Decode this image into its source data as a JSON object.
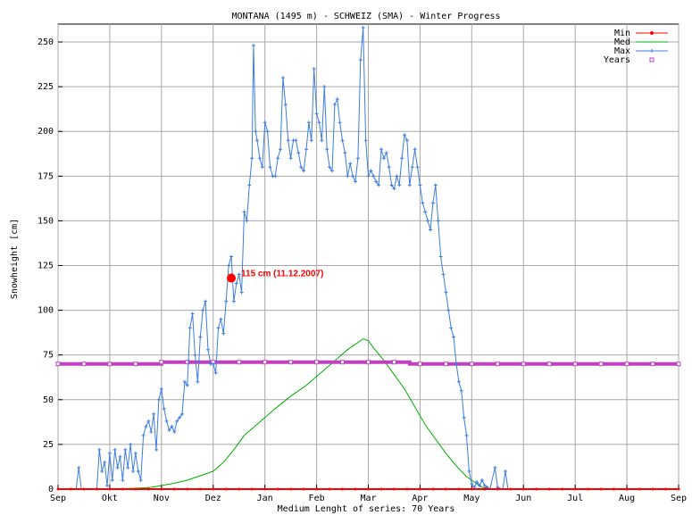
{
  "chart_data": {
    "type": "line",
    "title": "MONTANA (1495 m) - SCHWEIZ (SMA) - Winter Progress",
    "xlabel": "Medium Lenght of series: 70 Years",
    "ylabel": "Snowheight [cm]",
    "x_ticks": [
      "Sep",
      "Okt",
      "Nov",
      "Dez",
      "Jan",
      "Feb",
      "Mar",
      "Apr",
      "May",
      "Jun",
      "Jul",
      "Aug",
      "Sep"
    ],
    "y_ticks": [
      "0",
      "25",
      "50",
      "75",
      "100",
      "125",
      "150",
      "175",
      "200",
      "225",
      "250"
    ],
    "ylim": [
      0,
      260
    ],
    "x_unit": "months since 1 Sep",
    "xlim": [
      0,
      12
    ],
    "grid": true,
    "legend_position": "top-right",
    "series": [
      {
        "name": "Min",
        "color": "#ff0000",
        "points": [
          [
            0,
            0
          ],
          [
            12,
            0
          ]
        ]
      },
      {
        "name": "Med",
        "color": "#00b000",
        "points": [
          [
            0,
            0
          ],
          [
            1.0,
            0
          ],
          [
            1.5,
            0.5
          ],
          [
            1.8,
            1
          ],
          [
            2.0,
            2
          ],
          [
            2.2,
            3
          ],
          [
            2.5,
            5
          ],
          [
            2.8,
            8
          ],
          [
            3.0,
            10
          ],
          [
            3.2,
            15
          ],
          [
            3.4,
            22
          ],
          [
            3.6,
            30
          ],
          [
            3.8,
            35
          ],
          [
            4.0,
            40
          ],
          [
            4.2,
            45
          ],
          [
            4.5,
            52
          ],
          [
            4.8,
            58
          ],
          [
            5.0,
            63
          ],
          [
            5.2,
            68
          ],
          [
            5.4,
            73
          ],
          [
            5.6,
            78
          ],
          [
            5.8,
            82
          ],
          [
            5.9,
            84
          ],
          [
            6.0,
            83
          ],
          [
            6.1,
            79
          ],
          [
            6.3,
            72
          ],
          [
            6.5,
            64
          ],
          [
            6.7,
            56
          ],
          [
            6.9,
            46
          ],
          [
            7.1,
            36
          ],
          [
            7.3,
            28
          ],
          [
            7.5,
            20
          ],
          [
            7.7,
            13
          ],
          [
            7.9,
            7
          ],
          [
            8.1,
            3
          ],
          [
            8.2,
            1
          ],
          [
            8.4,
            0
          ],
          [
            12,
            0
          ]
        ]
      },
      {
        "name": "Max",
        "color": "#3c7ce0",
        "points": [
          [
            0,
            0
          ],
          [
            0.35,
            0
          ],
          [
            0.4,
            12
          ],
          [
            0.45,
            0
          ],
          [
            0.75,
            0
          ],
          [
            0.8,
            22
          ],
          [
            0.85,
            10
          ],
          [
            0.9,
            15
          ],
          [
            0.95,
            2
          ],
          [
            1.0,
            20
          ],
          [
            1.05,
            5
          ],
          [
            1.1,
            22
          ],
          [
            1.15,
            12
          ],
          [
            1.2,
            18
          ],
          [
            1.25,
            5
          ],
          [
            1.3,
            22
          ],
          [
            1.35,
            12
          ],
          [
            1.4,
            25
          ],
          [
            1.45,
            10
          ],
          [
            1.5,
            20
          ],
          [
            1.55,
            10
          ],
          [
            1.6,
            5
          ],
          [
            1.65,
            30
          ],
          [
            1.7,
            35
          ],
          [
            1.75,
            38
          ],
          [
            1.8,
            32
          ],
          [
            1.85,
            42
          ],
          [
            1.9,
            22
          ],
          [
            1.95,
            50
          ],
          [
            2.0,
            56
          ],
          [
            2.05,
            45
          ],
          [
            2.1,
            38
          ],
          [
            2.15,
            33
          ],
          [
            2.2,
            35
          ],
          [
            2.25,
            32
          ],
          [
            2.3,
            38
          ],
          [
            2.35,
            40
          ],
          [
            2.4,
            42
          ],
          [
            2.45,
            60
          ],
          [
            2.5,
            58
          ],
          [
            2.55,
            90
          ],
          [
            2.6,
            98
          ],
          [
            2.65,
            75
          ],
          [
            2.7,
            60
          ],
          [
            2.75,
            85
          ],
          [
            2.8,
            100
          ],
          [
            2.85,
            105
          ],
          [
            2.9,
            78
          ],
          [
            2.95,
            70
          ],
          [
            3.0,
            70
          ],
          [
            3.05,
            65
          ],
          [
            3.1,
            90
          ],
          [
            3.15,
            95
          ],
          [
            3.2,
            87
          ],
          [
            3.25,
            105
          ],
          [
            3.3,
            125
          ],
          [
            3.35,
            130
          ],
          [
            3.4,
            105
          ],
          [
            3.45,
            115
          ],
          [
            3.5,
            120
          ],
          [
            3.55,
            110
          ],
          [
            3.6,
            155
          ],
          [
            3.65,
            150
          ],
          [
            3.7,
            170
          ],
          [
            3.75,
            185
          ],
          [
            3.78,
            248
          ],
          [
            3.82,
            200
          ],
          [
            3.85,
            195
          ],
          [
            3.9,
            185
          ],
          [
            3.95,
            180
          ],
          [
            4.0,
            205
          ],
          [
            4.05,
            200
          ],
          [
            4.1,
            180
          ],
          [
            4.15,
            175
          ],
          [
            4.2,
            175
          ],
          [
            4.25,
            185
          ],
          [
            4.3,
            190
          ],
          [
            4.35,
            230
          ],
          [
            4.4,
            215
          ],
          [
            4.45,
            195
          ],
          [
            4.5,
            185
          ],
          [
            4.55,
            195
          ],
          [
            4.6,
            195
          ],
          [
            4.65,
            188
          ],
          [
            4.7,
            180
          ],
          [
            4.75,
            178
          ],
          [
            4.8,
            190
          ],
          [
            4.85,
            205
          ],
          [
            4.9,
            195
          ],
          [
            4.95,
            235
          ],
          [
            5.0,
            210
          ],
          [
            5.05,
            205
          ],
          [
            5.1,
            195
          ],
          [
            5.15,
            225
          ],
          [
            5.2,
            190
          ],
          [
            5.25,
            180
          ],
          [
            5.3,
            178
          ],
          [
            5.35,
            215
          ],
          [
            5.4,
            218
          ],
          [
            5.45,
            205
          ],
          [
            5.5,
            195
          ],
          [
            5.55,
            188
          ],
          [
            5.6,
            175
          ],
          [
            5.65,
            182
          ],
          [
            5.7,
            175
          ],
          [
            5.75,
            172
          ],
          [
            5.8,
            185
          ],
          [
            5.85,
            240
          ],
          [
            5.9,
            258
          ],
          [
            5.95,
            195
          ],
          [
            6.0,
            175
          ],
          [
            6.05,
            178
          ],
          [
            6.1,
            175
          ],
          [
            6.15,
            172
          ],
          [
            6.2,
            170
          ],
          [
            6.25,
            190
          ],
          [
            6.3,
            185
          ],
          [
            6.35,
            188
          ],
          [
            6.4,
            180
          ],
          [
            6.45,
            170
          ],
          [
            6.5,
            168
          ],
          [
            6.55,
            175
          ],
          [
            6.6,
            170
          ],
          [
            6.65,
            185
          ],
          [
            6.7,
            198
          ],
          [
            6.75,
            195
          ],
          [
            6.8,
            170
          ],
          [
            6.85,
            180
          ],
          [
            6.9,
            190
          ],
          [
            6.95,
            180
          ],
          [
            7.0,
            170
          ],
          [
            7.05,
            160
          ],
          [
            7.1,
            155
          ],
          [
            7.15,
            150
          ],
          [
            7.2,
            145
          ],
          [
            7.25,
            160
          ],
          [
            7.3,
            170
          ],
          [
            7.35,
            150
          ],
          [
            7.4,
            130
          ],
          [
            7.45,
            120
          ],
          [
            7.5,
            110
          ],
          [
            7.55,
            100
          ],
          [
            7.6,
            90
          ],
          [
            7.65,
            85
          ],
          [
            7.7,
            70
          ],
          [
            7.75,
            60
          ],
          [
            7.8,
            55
          ],
          [
            7.85,
            40
          ],
          [
            7.9,
            30
          ],
          [
            7.95,
            10
          ],
          [
            8.0,
            3
          ],
          [
            8.05,
            1
          ],
          [
            8.1,
            4
          ],
          [
            8.15,
            2
          ],
          [
            8.2,
            5
          ],
          [
            8.25,
            2
          ],
          [
            8.3,
            1
          ],
          [
            8.35,
            0
          ],
          [
            8.45,
            12
          ],
          [
            8.5,
            1
          ],
          [
            8.6,
            0
          ],
          [
            8.65,
            10
          ],
          [
            8.7,
            0
          ],
          [
            12,
            0
          ]
        ]
      },
      {
        "name": "Years",
        "color": "#c040c0",
        "points": [
          [
            0,
            70
          ],
          [
            2.0,
            70
          ],
          [
            2.0,
            71
          ],
          [
            6.8,
            71
          ],
          [
            6.8,
            70
          ],
          [
            12,
            70
          ]
        ]
      }
    ],
    "annotation": {
      "text": "115 cm (11.12.2007)",
      "x": 3.35,
      "y": 118,
      "color": "#ff0000"
    }
  }
}
